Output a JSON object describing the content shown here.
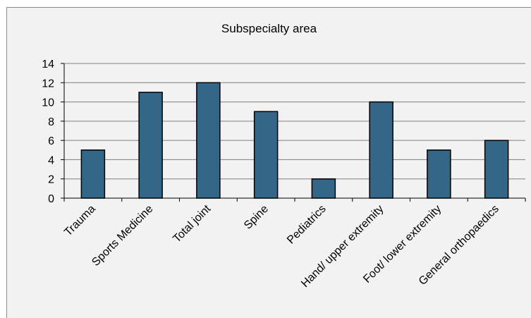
{
  "chart_data": {
    "type": "bar",
    "title": "Subspecialty area",
    "xlabel": "",
    "ylabel": "",
    "categories": [
      "Trauma",
      "Sports Medicine",
      "Total joint",
      "Spine",
      "Pediatrics",
      "Hand/ upper extremity",
      "Foot/ lower extremity",
      "General orthopaedics"
    ],
    "values": [
      5,
      11,
      12,
      9,
      2,
      10,
      5,
      6
    ],
    "ylim": [
      0,
      14
    ],
    "yticks": [
      "0",
      "2",
      "4",
      "6",
      "8",
      "10",
      "12",
      "14"
    ],
    "grid": true,
    "legend": "none",
    "colors": {
      "bar_fill": "#336687",
      "bar_stroke": "#000000",
      "gridline": "#808080",
      "plot_background": "#f2f2f2"
    }
  }
}
